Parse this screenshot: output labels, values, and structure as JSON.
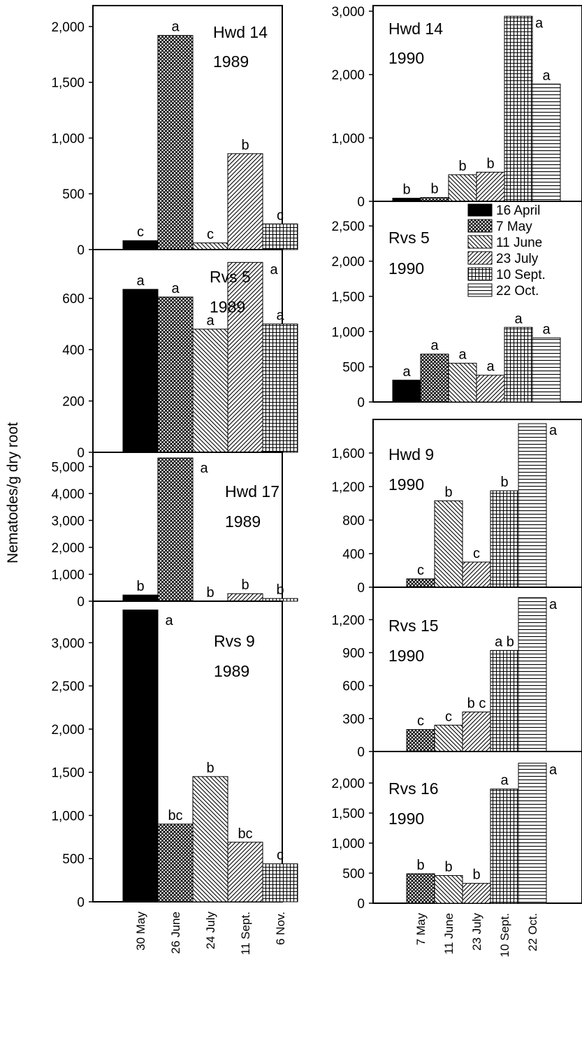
{
  "ylabel": "Nematodes/g dry root",
  "patterns": {
    "16 April": "black",
    "30 May": "black",
    "7 May": "dense-cross",
    "26 June": "dense-cross",
    "11 June": "diag-back",
    "24 July": "diag-back",
    "23 July": "diag-fwd",
    "11 Sept.": "diag-fwd",
    "10 Sept.": "grid",
    "6 Nov.": "grid",
    "22 Oct.": "horiz"
  },
  "legend": [
    "16 April",
    "7 May",
    "11 June",
    "23 July",
    "10 Sept.",
    "22 Oct."
  ],
  "chart_data": [
    {
      "type": "bar",
      "column": "left",
      "title_line1": "Hwd 14",
      "title_line2": "1989",
      "categories": [
        "30 May",
        "26 June",
        "24 July",
        "11 Sept.",
        "6 Nov."
      ],
      "values": [
        80,
        1920,
        60,
        860,
        230
      ],
      "letters": [
        "c",
        "a",
        "c",
        "b",
        "c"
      ],
      "ylim": [
        0,
        2100
      ],
      "yticks": [
        0,
        500,
        1000,
        1500,
        2000
      ],
      "yticklabels": [
        "0",
        "500",
        "1,000",
        "1,500",
        "2,000"
      ]
    },
    {
      "type": "bar",
      "column": "left",
      "title_line1": "Rvs 5",
      "title_line2": "1989",
      "categories": [
        "30 May",
        "26 June",
        "24 July",
        "11 Sept.",
        "6 Nov."
      ],
      "values": [
        635,
        605,
        480,
        740,
        500
      ],
      "letters": [
        "a",
        "a",
        "a",
        "a",
        "a"
      ],
      "ylim": [
        0,
        760
      ],
      "yticks": [
        0,
        200,
        400,
        600
      ],
      "yticklabels": [
        "0",
        "200",
        "400",
        "600"
      ]
    },
    {
      "type": "bar",
      "column": "left",
      "title_line1": "Hwd 17",
      "title_line2": "1989",
      "categories": [
        "30 May",
        "26 June",
        "24 July",
        "11 Sept.",
        "6 Nov."
      ],
      "values": [
        230,
        5320,
        0,
        280,
        100
      ],
      "letters": [
        "b",
        "a",
        "b",
        "b",
        "b"
      ],
      "ylim": [
        0,
        5400
      ],
      "yticks": [
        0,
        1000,
        2000,
        3000,
        4000,
        5000
      ],
      "yticklabels": [
        "0",
        "1,000",
        "2,000",
        "3,000",
        "4,000",
        "5,000"
      ]
    },
    {
      "type": "bar",
      "column": "left",
      "title_line1": "Rvs 9",
      "title_line2": "1989",
      "categories": [
        "30 May",
        "26 June",
        "24 July",
        "11 Sept.",
        "6 Nov."
      ],
      "values": [
        3380,
        900,
        1450,
        690,
        440
      ],
      "letters": [
        "a",
        "bc",
        "b",
        "bc",
        "c"
      ],
      "ylim": [
        0,
        3400
      ],
      "yticks": [
        0,
        500,
        1000,
        1500,
        2000,
        2500,
        3000
      ],
      "yticklabels": [
        "0",
        "500",
        "1,000",
        "1,500",
        "2,000",
        "2,500",
        "3,000"
      ]
    },
    {
      "type": "bar",
      "column": "right",
      "title_line1": "Hwd 14",
      "title_line2": "1990",
      "categories": [
        "16 April",
        "7 May",
        "11 June",
        "23 July",
        "10 Sept.",
        "22 Oct."
      ],
      "values": [
        50,
        60,
        420,
        460,
        2920,
        1850
      ],
      "letters": [
        "b",
        "b",
        "b",
        "b",
        "a",
        "a"
      ],
      "ylim": [
        0,
        3000
      ],
      "yticks": [
        0,
        1000,
        2000,
        3000
      ],
      "yticklabels": [
        "0",
        "1,000",
        "2,000",
        "3,000"
      ]
    },
    {
      "type": "bar",
      "column": "right",
      "title_line1": "Rvs 5",
      "title_line2": "1990",
      "categories": [
        "16 April",
        "7 May",
        "11 June",
        "23 July",
        "10 Sept.",
        "22 Oct."
      ],
      "values": [
        310,
        680,
        550,
        380,
        1060,
        910
      ],
      "letters": [
        "a",
        "a",
        "a",
        "a",
        "a",
        "a"
      ],
      "ylim": [
        0,
        2850
      ],
      "yticks": [
        0,
        500,
        1000,
        1500,
        2000,
        2500
      ],
      "yticklabels": [
        "0",
        "500",
        "1,000",
        "1,500",
        "2,000",
        "2,500"
      ]
    },
    {
      "type": "bar",
      "column": "right",
      "title_line1": "Hwd 9",
      "title_line2": "1990",
      "categories": [
        "7 May",
        "11 June",
        "23 July",
        "10 Sept.",
        "22 Oct."
      ],
      "values": [
        100,
        1030,
        300,
        1150,
        1950
      ],
      "letters": [
        "c",
        "b",
        "c",
        "b",
        "a"
      ],
      "ylim": [
        0,
        2000
      ],
      "yticks": [
        0,
        400,
        800,
        1200,
        1600
      ],
      "yticklabels": [
        "0",
        "400",
        "800",
        "1,200",
        "1,600"
      ]
    },
    {
      "type": "bar",
      "column": "right",
      "title_line1": "Rvs 15",
      "title_line2": "1990",
      "categories": [
        "7 May",
        "11 June",
        "23 July",
        "10 Sept.",
        "22 Oct."
      ],
      "values": [
        200,
        240,
        360,
        920,
        1400
      ],
      "letters": [
        "c",
        "c",
        "b c",
        "a b",
        "a"
      ],
      "ylim": [
        0,
        1400
      ],
      "yticks": [
        0,
        300,
        600,
        900,
        1200
      ],
      "yticklabels": [
        "0",
        "300",
        "600",
        "900",
        "1,200"
      ]
    },
    {
      "type": "bar",
      "column": "right",
      "title_line1": "Rvs 16",
      "title_line2": "1990",
      "categories": [
        "7 May",
        "11 June",
        "23 July",
        "10 Sept.",
        "22 Oct."
      ],
      "values": [
        490,
        460,
        330,
        1900,
        2330
      ],
      "letters": [
        "b",
        "b",
        "b",
        "a",
        "a"
      ],
      "ylim": [
        0,
        2350
      ],
      "yticks": [
        0,
        500,
        1000,
        1500,
        2000
      ],
      "yticklabels": [
        "0",
        "500",
        "1,000",
        "1,500",
        "2,000"
      ]
    }
  ]
}
